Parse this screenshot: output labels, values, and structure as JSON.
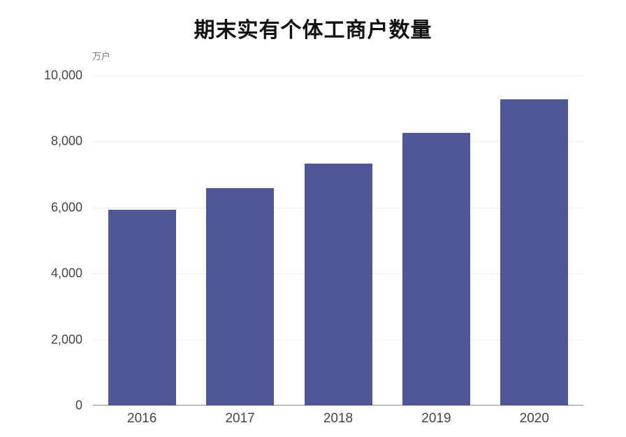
{
  "chart_data": {
    "type": "bar",
    "title": "期末实有个体工商户数量",
    "unit_label": "万户",
    "xlabel": "",
    "ylabel": "万户",
    "categories": [
      "2016",
      "2017",
      "2018",
      "2019",
      "2020"
    ],
    "values": [
      5930,
      6579,
      7328,
      8261,
      9288
    ],
    "ylim": [
      0,
      10000
    ],
    "yticks": [
      0,
      2000,
      4000,
      6000,
      8000,
      10000
    ],
    "ytick_labels": [
      "0",
      "2,000",
      "4,000",
      "6,000",
      "8,000",
      "10,000"
    ],
    "grid": true,
    "legend": "none",
    "bar_color": "#4f5797"
  }
}
